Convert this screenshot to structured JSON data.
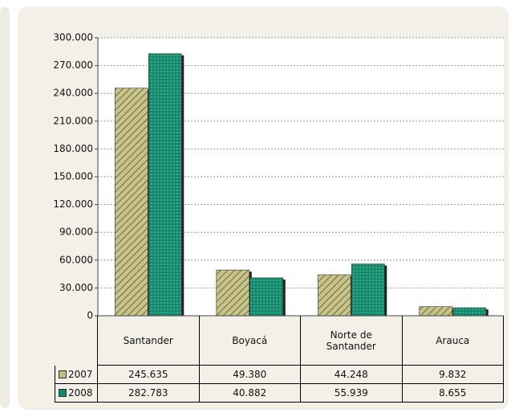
{
  "chart_data": {
    "type": "bar",
    "categories": [
      "Santander",
      "Boyacá",
      "Norte de Santander",
      "Arauca"
    ],
    "series": [
      {
        "name": "2007",
        "color": "#c2bd82",
        "values": [
          245635,
          49380,
          44248,
          9832
        ],
        "value_labels": [
          "245.635",
          "49.380",
          "44.248",
          "9.832"
        ]
      },
      {
        "name": "2008",
        "color": "#12896b",
        "values": [
          282783,
          40882,
          55939,
          8655
        ],
        "value_labels": [
          "282.783",
          "40.882",
          "55.939",
          "8.655"
        ]
      }
    ],
    "ylim": [
      0,
      300000
    ],
    "yticks": [
      0,
      {
        "value": 30000,
        "label": "30.000"
      },
      {
        "value": 60000,
        "label": "60.000"
      },
      {
        "value": 90000,
        "label": "90.000"
      },
      {
        "value": 120000,
        "label": "120.000"
      },
      {
        "value": 150000,
        "label": "150.000"
      },
      {
        "value": 180000,
        "label": "180.000"
      },
      {
        "value": 210000,
        "label": "210.000"
      },
      {
        "value": 240000,
        "label": "240.000"
      },
      {
        "value": 270000,
        "label": "270.000"
      },
      {
        "value": 300000,
        "label": "300.000"
      }
    ],
    "grid": true
  }
}
